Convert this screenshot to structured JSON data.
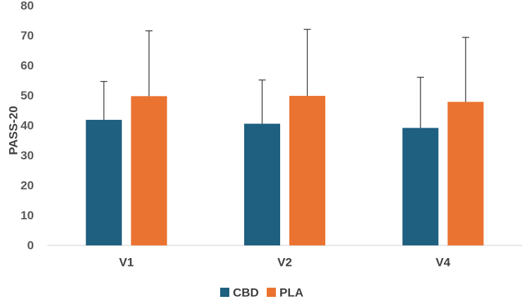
{
  "chart_data": {
    "type": "bar",
    "title": "",
    "xlabel": "",
    "ylabel": "PASS-20",
    "ylim": [
      0,
      80
    ],
    "yticks": [
      0,
      10,
      20,
      30,
      40,
      50,
      60,
      70,
      80
    ],
    "grid": false,
    "legend_position": "bottom",
    "categories": [
      "V1",
      "V2",
      "V4"
    ],
    "series": [
      {
        "name": "CBD",
        "color": "#1f5f7f",
        "values": [
          41.9,
          40.6,
          39.2
        ],
        "error": [
          12.8,
          14.6,
          16.9
        ]
      },
      {
        "name": "PLA",
        "color": "#eb7331",
        "values": [
          49.8,
          49.9,
          47.9
        ],
        "error": [
          21.8,
          22.2,
          21.5
        ]
      }
    ]
  }
}
